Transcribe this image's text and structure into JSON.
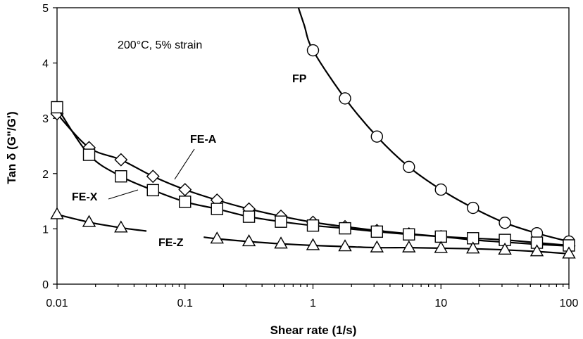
{
  "chart_data": {
    "type": "line",
    "title": "",
    "xlabel": "Shear rate (1/s)",
    "ylabel": "Tan δ (G\"/G')",
    "xscale": "log",
    "xlim": [
      0.01,
      100
    ],
    "ylim": [
      0,
      5
    ],
    "xticks": [
      0.01,
      0.1,
      1,
      10,
      100
    ],
    "xtick_labels": [
      "0.01",
      "0.1",
      "1",
      "10",
      "100"
    ],
    "yticks": [
      0,
      1,
      2,
      3,
      4,
      5
    ],
    "ytick_labels": [
      "0",
      "1",
      "2",
      "3",
      "4",
      "5"
    ],
    "grid": false,
    "annotation": "200°C, 5% strain",
    "series": [
      {
        "name": "FP",
        "marker": "circle",
        "x": [
          1,
          1.78,
          3.16,
          5.62,
          10,
          17.8,
          31.6,
          56.2,
          100
        ],
        "y": [
          4.23,
          3.36,
          2.67,
          2.12,
          1.71,
          1.38,
          1.11,
          0.92,
          0.77
        ]
      },
      {
        "name": "FE-A",
        "marker": "diamond",
        "x": [
          0.01,
          0.0178,
          0.0316,
          0.0562,
          0.1,
          0.178,
          0.316,
          0.562,
          1,
          1.78,
          3.16,
          5.62,
          10,
          17.8,
          31.6,
          56.2,
          100
        ],
        "y": [
          3.08,
          2.47,
          2.25,
          1.95,
          1.71,
          1.52,
          1.36,
          1.23,
          1.12,
          1.04,
          0.97,
          0.91,
          0.86,
          0.8,
          0.76,
          0.72,
          0.69
        ]
      },
      {
        "name": "FE-X",
        "marker": "square",
        "x": [
          0.01,
          0.0178,
          0.0316,
          0.0562,
          0.1,
          0.178,
          0.316,
          0.562,
          1,
          1.78,
          3.16,
          5.62,
          10,
          17.8,
          31.6,
          56.2,
          100
        ],
        "y": [
          3.2,
          2.34,
          1.95,
          1.7,
          1.49,
          1.36,
          1.22,
          1.13,
          1.06,
          1.01,
          0.95,
          0.9,
          0.86,
          0.83,
          0.8,
          0.75,
          0.7
        ]
      },
      {
        "name": "FE-Z",
        "marker": "triangle",
        "x": [
          0.01,
          0.0178,
          0.0316,
          0.178,
          0.316,
          0.562,
          1,
          1.78,
          3.16,
          5.62,
          10,
          17.8,
          31.6,
          56.2,
          100
        ],
        "y": [
          1.26,
          1.12,
          1.02,
          0.82,
          0.77,
          0.73,
          0.7,
          0.68,
          0.66,
          0.66,
          0.65,
          0.64,
          0.62,
          0.59,
          0.55
        ]
      }
    ]
  }
}
